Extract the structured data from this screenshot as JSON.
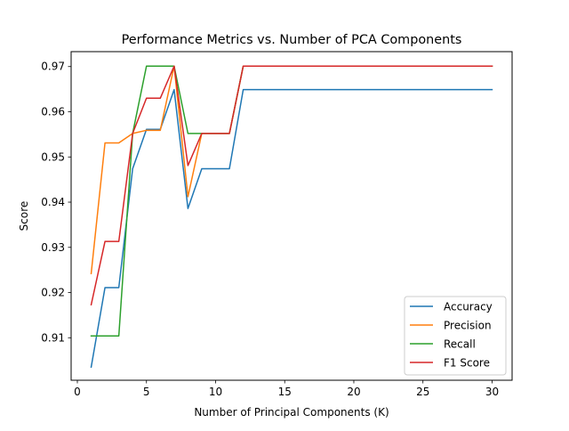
{
  "chart_data": {
    "type": "line",
    "title": "Performance Metrics vs. Number of PCA Components",
    "xlabel": "Number of Principal Components (K)",
    "ylabel": "Score",
    "xlim": [
      -0.45,
      31.45
    ],
    "ylim": [
      0.9006,
      0.9733
    ],
    "xticks": [
      0,
      5,
      10,
      15,
      20,
      25,
      30
    ],
    "yticks": [
      0.91,
      0.92,
      0.93,
      0.94,
      0.95,
      0.96,
      0.97
    ],
    "grid": false,
    "legend_position": "bottom-right",
    "x": [
      1,
      2,
      3,
      4,
      5,
      6,
      7,
      8,
      9,
      10,
      11,
      12,
      13,
      14,
      15,
      16,
      17,
      18,
      19,
      20,
      21,
      22,
      23,
      24,
      25,
      26,
      27,
      28,
      29,
      30
    ],
    "series": [
      {
        "name": "Accuracy",
        "color": "#1f77b4",
        "values": [
          0.9035,
          0.9211,
          0.9211,
          0.9474,
          0.9561,
          0.9561,
          0.9649,
          0.9386,
          0.9474,
          0.9474,
          0.9474,
          0.9649,
          0.9649,
          0.9649,
          0.9649,
          0.9649,
          0.9649,
          0.9649,
          0.9649,
          0.9649,
          0.9649,
          0.9649,
          0.9649,
          0.9649,
          0.9649,
          0.9649,
          0.9649,
          0.9649,
          0.9649,
          0.9649
        ]
      },
      {
        "name": "Precision",
        "color": "#ff7f0e",
        "values": [
          0.9242,
          0.9531,
          0.9531,
          0.9552,
          0.9559,
          0.9559,
          0.9701,
          0.9412,
          0.9552,
          0.9552,
          0.9552,
          0.9701,
          0.9701,
          0.9701,
          0.9701,
          0.9701,
          0.9701,
          0.9701,
          0.9701,
          0.9701,
          0.9701,
          0.9701,
          0.9701,
          0.9701,
          0.9701,
          0.9701,
          0.9701,
          0.9701,
          0.9701,
          0.9701
        ]
      },
      {
        "name": "Recall",
        "color": "#2ca02c",
        "values": [
          0.9104,
          0.9104,
          0.9104,
          0.9552,
          0.9701,
          0.9701,
          0.9701,
          0.9552,
          0.9552,
          0.9552,
          0.9552,
          0.9701,
          0.9701,
          0.9701,
          0.9701,
          0.9701,
          0.9701,
          0.9701,
          0.9701,
          0.9701,
          0.9701,
          0.9701,
          0.9701,
          0.9701,
          0.9701,
          0.9701,
          0.9701,
          0.9701,
          0.9701,
          0.9701
        ]
      },
      {
        "name": "F1 Score",
        "color": "#d62728",
        "values": [
          0.9173,
          0.9313,
          0.9313,
          0.9552,
          0.963,
          0.963,
          0.9701,
          0.9481,
          0.9552,
          0.9552,
          0.9552,
          0.9701,
          0.9701,
          0.9701,
          0.9701,
          0.9701,
          0.9701,
          0.9701,
          0.9701,
          0.9701,
          0.9701,
          0.9701,
          0.9701,
          0.9701,
          0.9701,
          0.9701,
          0.9701,
          0.9701,
          0.9701,
          0.9701
        ]
      }
    ]
  }
}
